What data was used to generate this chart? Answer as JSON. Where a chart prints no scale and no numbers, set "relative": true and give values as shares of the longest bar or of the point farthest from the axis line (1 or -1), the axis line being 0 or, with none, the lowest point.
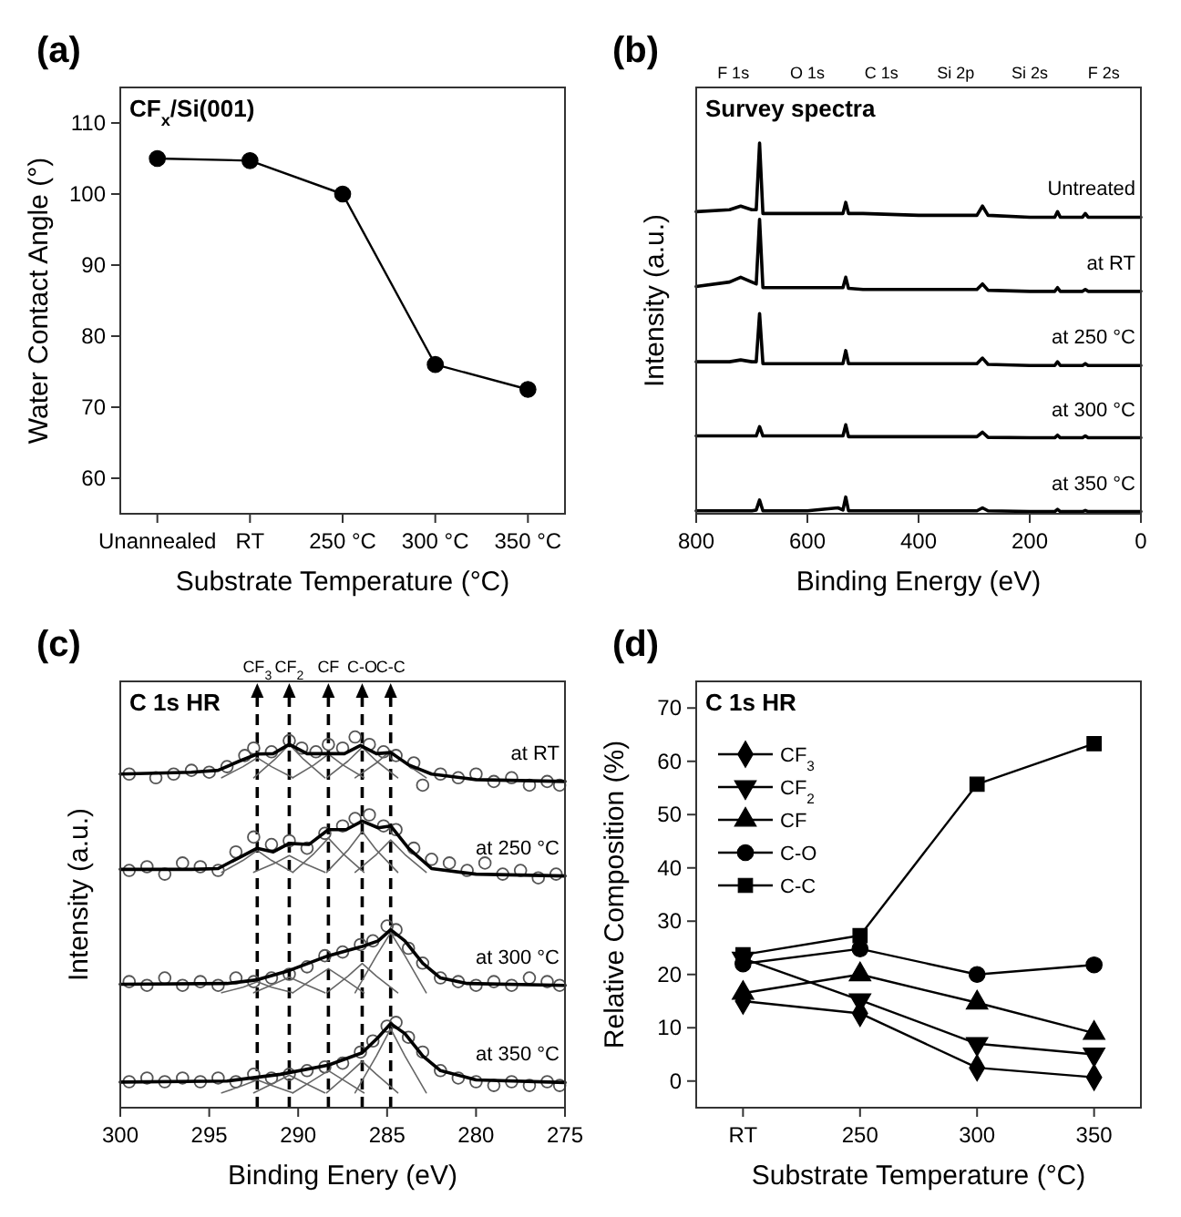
{
  "chart_data": [
    {
      "type": "line",
      "title": "(a)",
      "xlabel": "Substrate Temperature (°C)",
      "ylabel": "Water Contact Angle (°)",
      "annotations": [
        "CF$_{x}$/Si(001)"
      ],
      "categories": [
        "Unannealed",
        "RT",
        "250 °C",
        "300 °C",
        "350 °C"
      ],
      "series": [
        {
          "color": "#000000",
          "values": [
            105,
            104.7,
            100,
            76,
            72.5
          ]
        }
      ],
      "ylim": [
        55,
        115
      ],
      "yticks": [
        60,
        70,
        80,
        90,
        100,
        110
      ],
      "marker": "circle",
      "grid": false
    },
    {
      "type": "line",
      "title": "(b)",
      "xlabel": "Binding Energy (eV)",
      "ylabel": "Intensity (a.u.)",
      "relative": true,
      "annotations": [
        "Survey spectra",
        "F 1s",
        "O 1s",
        "C 1s",
        "Si 2p",
        "Si 2s",
        "F 2s"
      ],
      "x": [
        800,
        740,
        720,
        700,
        692,
        686,
        680,
        660,
        600,
        545,
        536,
        531,
        526,
        500,
        400,
        295,
        285,
        275,
        200,
        155,
        150,
        145,
        105,
        100,
        95,
        0
      ],
      "series": [
        {
          "name": "Untreated",
          "color": "#000000",
          "values": [
            0.815,
            0.82,
            0.83,
            0.82,
            0.82,
            1.0,
            0.81,
            0.81,
            0.81,
            0.81,
            0.81,
            0.84,
            0.81,
            0.81,
            0.805,
            0.805,
            0.83,
            0.805,
            0.8,
            0.8,
            0.815,
            0.8,
            0.8,
            0.81,
            0.8,
            0.8
          ]
        },
        {
          "name": "at RT",
          "color": "#000000",
          "values": [
            0.613,
            0.625,
            0.638,
            0.625,
            0.62,
            0.794,
            0.61,
            0.61,
            0.61,
            0.61,
            0.61,
            0.638,
            0.608,
            0.605,
            0.605,
            0.605,
            0.62,
            0.603,
            0.6,
            0.6,
            0.61,
            0.6,
            0.6,
            0.605,
            0.6,
            0.6
          ]
        },
        {
          "name": "at 250 °C",
          "color": "#000000",
          "values": [
            0.41,
            0.41,
            0.415,
            0.41,
            0.41,
            0.54,
            0.405,
            0.405,
            0.405,
            0.405,
            0.405,
            0.44,
            0.405,
            0.405,
            0.405,
            0.405,
            0.42,
            0.403,
            0.4,
            0.4,
            0.41,
            0.4,
            0.4,
            0.405,
            0.4,
            0.4
          ]
        },
        {
          "name": "at 300 °C",
          "color": "#000000",
          "values": [
            0.21,
            0.21,
            0.21,
            0.21,
            0.21,
            0.235,
            0.21,
            0.21,
            0.21,
            0.21,
            0.21,
            0.24,
            0.208,
            0.208,
            0.208,
            0.208,
            0.22,
            0.206,
            0.205,
            0.205,
            0.212,
            0.205,
            0.205,
            0.21,
            0.205,
            0.205
          ]
        },
        {
          "name": "at 350 °C",
          "color": "#000000",
          "values": [
            0.008,
            0.008,
            0.008,
            0.008,
            0.01,
            0.037,
            0.008,
            0.008,
            0.008,
            0.016,
            0.01,
            0.045,
            0.008,
            0.008,
            0.008,
            0.008,
            0.016,
            0.008,
            0.006,
            0.006,
            0.012,
            0.006,
            0.006,
            0.009,
            0.006,
            0.006
          ]
        }
      ],
      "xlim": [
        800,
        0
      ],
      "xticks": [
        800,
        600,
        400,
        200,
        0
      ],
      "marker": "none"
    },
    {
      "type": "line",
      "title": "(c)",
      "xlabel": "Binding Enery (eV)",
      "ylabel": "Intensity (a.u.)",
      "relative": true,
      "annotations": [
        "C 1s HR"
      ],
      "ref_lines": [
        {
          "axis": "x",
          "value": 292.3,
          "label": "CF$_{3}$",
          "line_style": "dashed"
        },
        {
          "axis": "x",
          "value": 290.5,
          "label": "CF$_{2}$",
          "line_style": "dashed"
        },
        {
          "axis": "x",
          "value": 288.3,
          "label": "CF",
          "line_style": "dashed"
        },
        {
          "axis": "x",
          "value": 286.4,
          "label": "C-O",
          "line_style": "dashed"
        },
        {
          "axis": "x",
          "value": 284.8,
          "label": "C-C",
          "line_style": "dashed"
        }
      ],
      "series": [
        {
          "type": "scatter",
          "marker": "circle",
          "color": "#555555",
          "x": [
            299.5,
            298,
            297,
            296,
            295,
            294,
            293,
            292.5,
            291.5,
            290.5,
            289.8,
            289,
            288.3,
            287.5,
            286.8,
            286,
            285.2,
            284.5,
            283.5,
            283,
            282,
            281,
            280,
            279,
            278,
            277,
            276,
            275.3
          ],
          "values": [
            0.9,
            0.89,
            0.9,
            0.91,
            0.905,
            0.92,
            0.95,
            0.97,
            0.96,
            0.99,
            0.97,
            0.96,
            0.98,
            0.97,
            1.0,
            0.98,
            0.96,
            0.95,
            0.93,
            0.87,
            0.9,
            0.89,
            0.9,
            0.88,
            0.89,
            0.87,
            0.88,
            0.87
          ]
        },
        {
          "type": "scatter",
          "marker": "circle",
          "color": "#555555",
          "x": [
            299.5,
            298.5,
            297.5,
            296.5,
            295.5,
            294.5,
            293.5,
            292.5,
            291.5,
            290.5,
            289.5,
            288.5,
            287.5,
            286.8,
            286,
            285.2,
            284.5,
            283.5,
            282.5,
            281.5,
            280.5,
            279.5,
            278.5,
            277.5,
            276.5,
            275.5
          ],
          "values": [
            0.64,
            0.65,
            0.63,
            0.66,
            0.65,
            0.64,
            0.69,
            0.73,
            0.71,
            0.72,
            0.7,
            0.74,
            0.76,
            0.78,
            0.79,
            0.76,
            0.75,
            0.7,
            0.67,
            0.66,
            0.64,
            0.66,
            0.63,
            0.64,
            0.62,
            0.63
          ]
        },
        {
          "type": "scatter",
          "marker": "circle",
          "color": "#555555",
          "x": [
            299.5,
            298.5,
            297.5,
            296.5,
            295.5,
            294.5,
            293.5,
            292.5,
            291.5,
            290.5,
            289.5,
            288.5,
            287.5,
            286.5,
            285.8,
            285,
            284.5,
            283.8,
            283,
            282,
            281,
            280,
            279,
            278,
            277,
            276,
            275.3
          ],
          "values": [
            0.34,
            0.33,
            0.35,
            0.33,
            0.34,
            0.33,
            0.35,
            0.34,
            0.35,
            0.36,
            0.38,
            0.41,
            0.42,
            0.44,
            0.45,
            0.49,
            0.48,
            0.43,
            0.39,
            0.35,
            0.34,
            0.33,
            0.34,
            0.33,
            0.35,
            0.34,
            0.33
          ]
        },
        {
          "type": "scatter",
          "marker": "circle",
          "color": "#555555",
          "x": [
            299.5,
            298.5,
            297.5,
            296.5,
            295.5,
            294.5,
            293.5,
            292.5,
            291.5,
            290.5,
            289.5,
            288.5,
            287.5,
            286.5,
            285.8,
            285,
            284.5,
            283.8,
            283,
            282,
            281,
            280,
            279,
            278,
            277,
            276,
            275.3
          ],
          "values": [
            0.07,
            0.08,
            0.07,
            0.08,
            0.07,
            0.08,
            0.07,
            0.09,
            0.08,
            0.09,
            0.1,
            0.11,
            0.12,
            0.15,
            0.18,
            0.22,
            0.23,
            0.19,
            0.15,
            0.1,
            0.08,
            0.07,
            0.06,
            0.07,
            0.06,
            0.07,
            0.06
          ]
        },
        {
          "color": "#666666",
          "x": [
            294.3,
            293.1,
            292.3,
            291.5,
            290.3
          ],
          "values": [
            0.89,
            0.92,
            0.944,
            0.92,
            0.89
          ]
        },
        {
          "color": "#666666",
          "x": [
            292.5,
            291.3,
            290.5,
            289.7,
            288.5
          ],
          "values": [
            0.89,
            0.94,
            0.98,
            0.94,
            0.89
          ]
        },
        {
          "color": "#666666",
          "x": [
            290.3,
            289.1,
            288.3,
            287.5,
            286.3
          ],
          "values": [
            0.89,
            0.925,
            0.954,
            0.925,
            0.89
          ]
        },
        {
          "color": "#666666",
          "x": [
            288.4,
            287.2,
            286.4,
            285.6,
            284.4
          ],
          "values": [
            0.89,
            0.935,
            0.972,
            0.935,
            0.89
          ]
        },
        {
          "color": "#666666",
          "x": [
            286.8,
            285.6,
            284.8,
            284,
            282.8
          ],
          "values": [
            0.89,
            0.93,
            0.963,
            0.93,
            0.89
          ]
        },
        {
          "color": "#666666",
          "x": [
            294.3,
            293.1,
            292.3,
            291.5,
            290.3
          ],
          "values": [
            0.635,
            0.667,
            0.694,
            0.667,
            0.635
          ]
        },
        {
          "color": "#666666",
          "x": [
            292.5,
            291.3,
            290.5,
            289.7,
            288.5
          ],
          "values": [
            0.635,
            0.66,
            0.68,
            0.66,
            0.635
          ]
        },
        {
          "color": "#666666",
          "x": [
            290.3,
            289.1,
            288.3,
            287.5,
            286.3
          ],
          "values": [
            0.635,
            0.686,
            0.727,
            0.686,
            0.635
          ]
        },
        {
          "color": "#666666",
          "x": [
            288.4,
            287.2,
            286.4,
            285.6,
            284.4
          ],
          "values": [
            0.635,
            0.695,
            0.745,
            0.695,
            0.635
          ]
        },
        {
          "color": "#666666",
          "x": [
            286.8,
            285.6,
            284.8,
            284,
            282.8
          ],
          "values": [
            0.635,
            0.683,
            0.722,
            0.683,
            0.635
          ]
        },
        {
          "color": "#666666",
          "x": [
            294.3,
            293.1,
            292.3,
            291.5,
            290.3
          ],
          "values": [
            0.31,
            0.325,
            0.34,
            0.325,
            0.31
          ]
        },
        {
          "color": "#666666",
          "x": [
            292.5,
            291.3,
            290.5,
            289.7,
            288.5
          ],
          "values": [
            0.31,
            0.335,
            0.352,
            0.335,
            0.31
          ]
        },
        {
          "color": "#666666",
          "x": [
            290.3,
            289.1,
            288.3,
            287.5,
            286.3
          ],
          "values": [
            0.31,
            0.35,
            0.375,
            0.35,
            0.31
          ]
        },
        {
          "color": "#666666",
          "x": [
            288.4,
            287.2,
            286.4,
            285.6,
            284.4
          ],
          "values": [
            0.31,
            0.355,
            0.389,
            0.355,
            0.31
          ]
        },
        {
          "color": "#666666",
          "x": [
            286.8,
            285.6,
            284.8,
            284,
            282.8
          ],
          "values": [
            0.31,
            0.41,
            0.472,
            0.41,
            0.31
          ]
        },
        {
          "color": "#666666",
          "x": [
            294.3,
            293.1,
            292.3,
            291.5,
            290.3
          ],
          "values": [
            0.04,
            0.06,
            0.075,
            0.06,
            0.04
          ]
        },
        {
          "color": "#666666",
          "x": [
            292.5,
            291.3,
            290.5,
            289.7,
            288.5
          ],
          "values": [
            0.04,
            0.068,
            0.088,
            0.068,
            0.04
          ]
        },
        {
          "color": "#666666",
          "x": [
            290.3,
            289.1,
            288.3,
            287.5,
            286.3
          ],
          "values": [
            0.04,
            0.076,
            0.1,
            0.076,
            0.04
          ]
        },
        {
          "color": "#666666",
          "x": [
            288.4,
            287.2,
            286.4,
            285.6,
            284.4
          ],
          "values": [
            0.04,
            0.09,
            0.125,
            0.09,
            0.04
          ]
        },
        {
          "color": "#666666",
          "x": [
            286.8,
            285.6,
            284.8,
            284,
            282.8
          ],
          "values": [
            0.04,
            0.14,
            0.213,
            0.14,
            0.04
          ]
        },
        {
          "name": "at RT",
          "color": "#000000",
          "x": [
            300,
            296,
            294.5,
            293.3,
            292.3,
            291.4,
            290.5,
            289.5,
            288.4,
            287.4,
            286.5,
            285.6,
            284.8,
            283.8,
            282.5,
            280,
            275
          ],
          "values": [
            0.9,
            0.905,
            0.91,
            0.935,
            0.954,
            0.955,
            0.98,
            0.955,
            0.955,
            0.955,
            0.977,
            0.955,
            0.958,
            0.925,
            0.9,
            0.885,
            0.88
          ]
        },
        {
          "name": "at 250 °C",
          "color": "#000000",
          "x": [
            300,
            296,
            294.5,
            293.3,
            292.3,
            291.4,
            290.5,
            289.4,
            288.3,
            287.3,
            286.4,
            285.5,
            284.8,
            283.8,
            282.5,
            280,
            275
          ],
          "values": [
            0.643,
            0.643,
            0.645,
            0.675,
            0.7,
            0.69,
            0.713,
            0.71,
            0.75,
            0.75,
            0.773,
            0.755,
            0.76,
            0.7,
            0.645,
            0.63,
            0.625
          ]
        },
        {
          "name": "at 300 °C",
          "color": "#000000",
          "x": [
            300,
            294,
            292.3,
            290.5,
            288.3,
            286.4,
            285.5,
            284.8,
            284,
            283,
            282,
            280.5,
            275
          ],
          "values": [
            0.333,
            0.335,
            0.345,
            0.37,
            0.41,
            0.435,
            0.45,
            0.48,
            0.45,
            0.39,
            0.35,
            0.335,
            0.33
          ]
        },
        {
          "name": "at 350 °C",
          "color": "#000000",
          "x": [
            300,
            294,
            291,
            288.3,
            286.4,
            285.5,
            284.8,
            284,
            283,
            282,
            280,
            275
          ],
          "values": [
            0.069,
            0.072,
            0.09,
            0.115,
            0.148,
            0.19,
            0.227,
            0.2,
            0.14,
            0.1,
            0.075,
            0.068
          ]
        }
      ],
      "xlim": [
        300,
        275
      ],
      "xticks": [
        300,
        295,
        290,
        285,
        280,
        275
      ],
      "marker": "none"
    },
    {
      "type": "line",
      "title": "(d)",
      "xlabel": "Substrate Temperature (°C)",
      "ylabel": "Relative Composition (%)",
      "annotations": [
        "C 1s HR"
      ],
      "categories": [
        "RT",
        "250",
        "300",
        "350"
      ],
      "series": [
        {
          "name": "CF$_{3}$",
          "color": "#000000",
          "marker": "diamond",
          "values": [
            15,
            12.7,
            2.5,
            0.7
          ]
        },
        {
          "name": "CF$_{2}$",
          "color": "#000000",
          "marker": "triangle-down",
          "values": [
            23,
            15.2,
            7,
            5
          ]
        },
        {
          "name": "CF",
          "color": "#000000",
          "marker": "triangle",
          "values": [
            16.5,
            20,
            14.7,
            9
          ]
        },
        {
          "name": "C-O",
          "color": "#000000",
          "marker": "circle",
          "values": [
            22,
            24.8,
            20,
            21.8
          ]
        },
        {
          "name": "C-C",
          "color": "#000000",
          "marker": "square",
          "values": [
            23.7,
            27.3,
            55.7,
            63.3
          ]
        }
      ],
      "ylim": [
        -5,
        75
      ],
      "yticks": [
        0,
        10,
        20,
        30,
        40,
        50,
        60,
        70
      ],
      "legend": "top left"
    }
  ]
}
